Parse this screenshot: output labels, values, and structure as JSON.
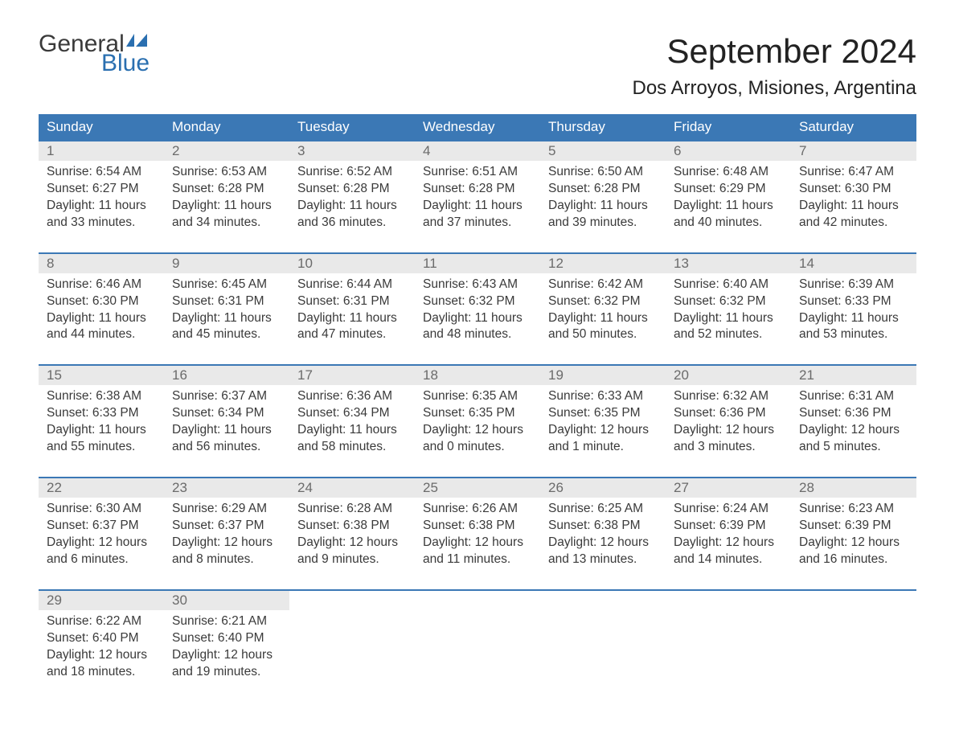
{
  "logo": {
    "general": "General",
    "blue": "Blue"
  },
  "title": "September 2024",
  "location": "Dos Arroyos, Misiones, Argentina",
  "colors": {
    "header_bg": "#3b78b5",
    "header_text": "#ffffff",
    "daynum_bg": "#e9e9e9",
    "daynum_text": "#6b6b6b",
    "body_text": "#3a3a3a",
    "logo_blue": "#2a6fb0",
    "page_bg": "#ffffff"
  },
  "day_names": [
    "Sunday",
    "Monday",
    "Tuesday",
    "Wednesday",
    "Thursday",
    "Friday",
    "Saturday"
  ],
  "labels": {
    "sunrise": "Sunrise:",
    "sunset": "Sunset:",
    "daylight": "Daylight:"
  },
  "weeks": [
    [
      {
        "n": "1",
        "sunrise": "6:54 AM",
        "sunset": "6:27 PM",
        "daylight": "11 hours and 33 minutes."
      },
      {
        "n": "2",
        "sunrise": "6:53 AM",
        "sunset": "6:28 PM",
        "daylight": "11 hours and 34 minutes."
      },
      {
        "n": "3",
        "sunrise": "6:52 AM",
        "sunset": "6:28 PM",
        "daylight": "11 hours and 36 minutes."
      },
      {
        "n": "4",
        "sunrise": "6:51 AM",
        "sunset": "6:28 PM",
        "daylight": "11 hours and 37 minutes."
      },
      {
        "n": "5",
        "sunrise": "6:50 AM",
        "sunset": "6:28 PM",
        "daylight": "11 hours and 39 minutes."
      },
      {
        "n": "6",
        "sunrise": "6:48 AM",
        "sunset": "6:29 PM",
        "daylight": "11 hours and 40 minutes."
      },
      {
        "n": "7",
        "sunrise": "6:47 AM",
        "sunset": "6:30 PM",
        "daylight": "11 hours and 42 minutes."
      }
    ],
    [
      {
        "n": "8",
        "sunrise": "6:46 AM",
        "sunset": "6:30 PM",
        "daylight": "11 hours and 44 minutes."
      },
      {
        "n": "9",
        "sunrise": "6:45 AM",
        "sunset": "6:31 PM",
        "daylight": "11 hours and 45 minutes."
      },
      {
        "n": "10",
        "sunrise": "6:44 AM",
        "sunset": "6:31 PM",
        "daylight": "11 hours and 47 minutes."
      },
      {
        "n": "11",
        "sunrise": "6:43 AM",
        "sunset": "6:32 PM",
        "daylight": "11 hours and 48 minutes."
      },
      {
        "n": "12",
        "sunrise": "6:42 AM",
        "sunset": "6:32 PM",
        "daylight": "11 hours and 50 minutes."
      },
      {
        "n": "13",
        "sunrise": "6:40 AM",
        "sunset": "6:32 PM",
        "daylight": "11 hours and 52 minutes."
      },
      {
        "n": "14",
        "sunrise": "6:39 AM",
        "sunset": "6:33 PM",
        "daylight": "11 hours and 53 minutes."
      }
    ],
    [
      {
        "n": "15",
        "sunrise": "6:38 AM",
        "sunset": "6:33 PM",
        "daylight": "11 hours and 55 minutes."
      },
      {
        "n": "16",
        "sunrise": "6:37 AM",
        "sunset": "6:34 PM",
        "daylight": "11 hours and 56 minutes."
      },
      {
        "n": "17",
        "sunrise": "6:36 AM",
        "sunset": "6:34 PM",
        "daylight": "11 hours and 58 minutes."
      },
      {
        "n": "18",
        "sunrise": "6:35 AM",
        "sunset": "6:35 PM",
        "daylight": "12 hours and 0 minutes."
      },
      {
        "n": "19",
        "sunrise": "6:33 AM",
        "sunset": "6:35 PM",
        "daylight": "12 hours and 1 minute."
      },
      {
        "n": "20",
        "sunrise": "6:32 AM",
        "sunset": "6:36 PM",
        "daylight": "12 hours and 3 minutes."
      },
      {
        "n": "21",
        "sunrise": "6:31 AM",
        "sunset": "6:36 PM",
        "daylight": "12 hours and 5 minutes."
      }
    ],
    [
      {
        "n": "22",
        "sunrise": "6:30 AM",
        "sunset": "6:37 PM",
        "daylight": "12 hours and 6 minutes."
      },
      {
        "n": "23",
        "sunrise": "6:29 AM",
        "sunset": "6:37 PM",
        "daylight": "12 hours and 8 minutes."
      },
      {
        "n": "24",
        "sunrise": "6:28 AM",
        "sunset": "6:38 PM",
        "daylight": "12 hours and 9 minutes."
      },
      {
        "n": "25",
        "sunrise": "6:26 AM",
        "sunset": "6:38 PM",
        "daylight": "12 hours and 11 minutes."
      },
      {
        "n": "26",
        "sunrise": "6:25 AM",
        "sunset": "6:38 PM",
        "daylight": "12 hours and 13 minutes."
      },
      {
        "n": "27",
        "sunrise": "6:24 AM",
        "sunset": "6:39 PM",
        "daylight": "12 hours and 14 minutes."
      },
      {
        "n": "28",
        "sunrise": "6:23 AM",
        "sunset": "6:39 PM",
        "daylight": "12 hours and 16 minutes."
      }
    ],
    [
      {
        "n": "29",
        "sunrise": "6:22 AM",
        "sunset": "6:40 PM",
        "daylight": "12 hours and 18 minutes."
      },
      {
        "n": "30",
        "sunrise": "6:21 AM",
        "sunset": "6:40 PM",
        "daylight": "12 hours and 19 minutes."
      },
      null,
      null,
      null,
      null,
      null
    ]
  ]
}
